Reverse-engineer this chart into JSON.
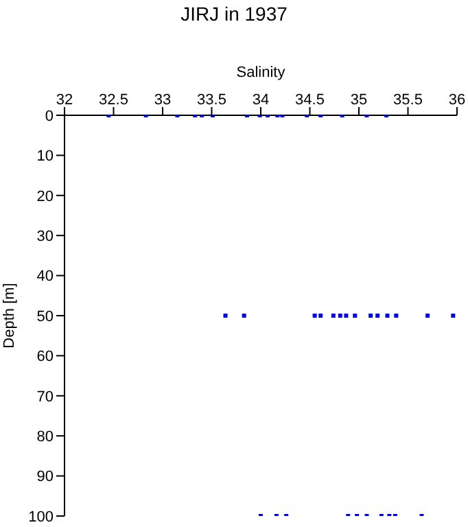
{
  "chart_data": {
    "type": "scatter",
    "title": "JIRJ in 1937",
    "xlabel": "Salinity",
    "ylabel": "Depth [m]",
    "xlim": [
      32,
      36
    ],
    "xticks": [
      32,
      32.5,
      33,
      33.5,
      34,
      34.5,
      35,
      35.5,
      36
    ],
    "ylim": [
      100,
      0
    ],
    "yticks": [
      0,
      10,
      20,
      30,
      40,
      50,
      60,
      70,
      80,
      90,
      100
    ],
    "marker": "square",
    "grid": false,
    "series": [
      {
        "color": "#0000ff",
        "x": [
          32.45,
          32.83,
          33.15,
          33.33,
          33.4,
          33.51,
          33.86,
          33.99,
          34.07,
          34.17,
          34.22,
          34.47,
          34.61,
          34.83,
          35.08,
          35.28,
          33.64,
          33.83,
          34.55,
          34.61,
          34.74,
          34.81,
          34.87,
          34.96,
          35.12,
          35.19,
          35.29,
          35.38,
          35.7,
          35.96,
          34.0,
          34.16,
          34.26,
          34.89,
          34.98,
          35.08,
          35.23,
          35.31,
          35.37,
          35.64
        ],
        "values": [
          0,
          0,
          0,
          0,
          0,
          0,
          0,
          0,
          0,
          0,
          0,
          0,
          0,
          0,
          0,
          0,
          50,
          50,
          50,
          50,
          50,
          50,
          50,
          50,
          50,
          50,
          50,
          50,
          50,
          50,
          100,
          100,
          100,
          100,
          100,
          100,
          100,
          100,
          100,
          100
        ]
      }
    ]
  }
}
